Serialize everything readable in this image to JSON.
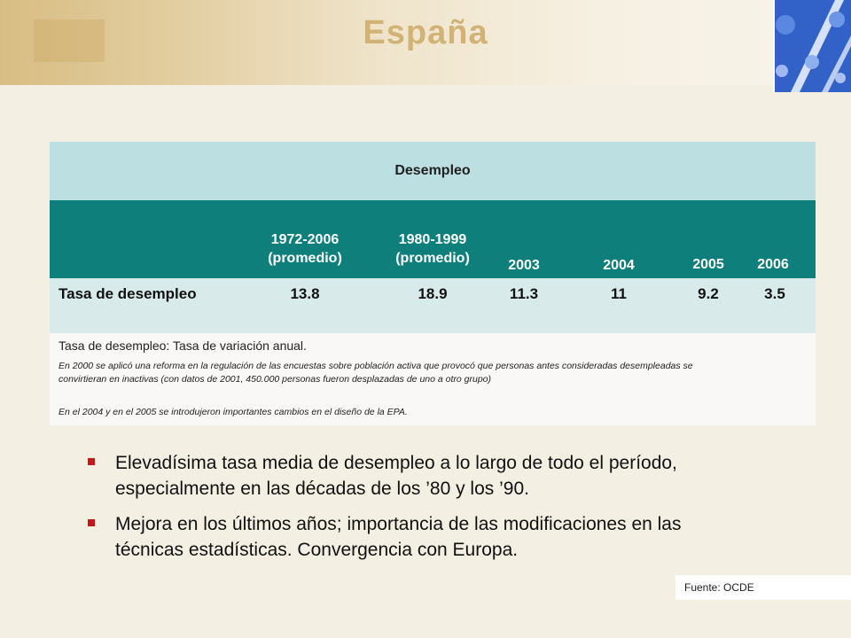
{
  "title": "España",
  "table": {
    "title": "Desempleo",
    "columns": [
      "1972-2006 (promedio)",
      "1980-1999 (promedio)",
      "2003",
      "2004",
      "2005",
      "2006"
    ],
    "columns_lines": [
      [
        "1972-2006",
        "(promedio)"
      ],
      [
        "1980-1999",
        "(promedio)"
      ]
    ],
    "row_label": "Tasa de desempleo",
    "values": [
      "13.8",
      "18.9",
      "11.3",
      "11",
      "9.2",
      "3.5"
    ],
    "note_main": "Tasa de desempleo: Tasa de variación anual.",
    "note_1": "En 2000 se aplicó una reforma en la regulación de las encuestas sobre población activa que provocó que personas antes consideradas desempleadas se convirtieran en inactivas (con datos de 2001, 450.000 personas fueron desplazadas de uno a otro grupo)",
    "note_2": "En el 2004 y en el 2005 se introdujeron importantes cambios en el diseño de la EPA."
  },
  "bullets": [
    "Elevadísima tasa media de desempleo a lo largo de todo el período, especialmente en las décadas de los ’80 y los ’90.",
    "Mejora en los últimos años; importancia de las modificaciones en las técnicas estadísticas. Convergencia con Europa."
  ],
  "source": "Fuente: OCDE",
  "colors": {
    "title": "#d2b376",
    "header_bg": "#0f7f7c",
    "table_title_bg": "#bcdfe2",
    "row_bg": "#d8ebea",
    "bullet": "#c21a1a"
  }
}
